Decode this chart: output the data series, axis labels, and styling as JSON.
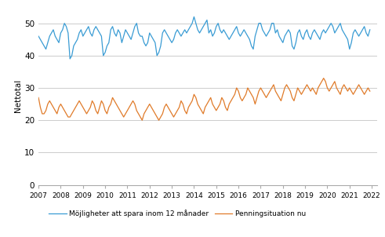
{
  "title": "",
  "ylabel": "Nettotal",
  "xlabel": "",
  "ylim": [
    0,
    55
  ],
  "yticks": [
    0,
    10,
    20,
    30,
    40,
    50
  ],
  "blue_color": "#3a9cd4",
  "orange_color": "#e07b2a",
  "legend_blue": "Möjligheter att spara inom 12 månader",
  "legend_orange": "Penningsituation nu",
  "blue_data": [
    46,
    45,
    44,
    43,
    42,
    44,
    46,
    47,
    48,
    46,
    45,
    44,
    47,
    48,
    50,
    49,
    47,
    39,
    40,
    43,
    44,
    45,
    47,
    48,
    46,
    47,
    48,
    49,
    47,
    46,
    48,
    49,
    48,
    47,
    46,
    40,
    41,
    43,
    44,
    48,
    49,
    47,
    46,
    48,
    47,
    44,
    46,
    48,
    47,
    46,
    45,
    47,
    49,
    50,
    47,
    46,
    46,
    44,
    43,
    44,
    47,
    46,
    45,
    44,
    40,
    41,
    43,
    47,
    48,
    47,
    46,
    45,
    44,
    45,
    47,
    48,
    47,
    46,
    47,
    48,
    47,
    48,
    49,
    50,
    52,
    50,
    48,
    47,
    48,
    49,
    50,
    51,
    47,
    48,
    46,
    47,
    49,
    50,
    48,
    47,
    48,
    47,
    46,
    45,
    46,
    47,
    48,
    49,
    47,
    46,
    47,
    48,
    47,
    46,
    45,
    43,
    42,
    46,
    48,
    50,
    50,
    48,
    47,
    46,
    47,
    48,
    50,
    50,
    47,
    48,
    46,
    45,
    44,
    46,
    47,
    48,
    47,
    43,
    42,
    44,
    47,
    48,
    46,
    45,
    47,
    48,
    46,
    45,
    47,
    48,
    47,
    46,
    45,
    47,
    48,
    47,
    48,
    49,
    50,
    49,
    47,
    48,
    49,
    50,
    48,
    47,
    46,
    45,
    42,
    44,
    47,
    48,
    47,
    46,
    47,
    48,
    49,
    47,
    46,
    48
  ],
  "orange_data": [
    27,
    24,
    22,
    22,
    23,
    25,
    26,
    25,
    24,
    23,
    22,
    24,
    25,
    24,
    23,
    22,
    21,
    21,
    22,
    23,
    24,
    25,
    26,
    25,
    24,
    23,
    22,
    23,
    24,
    26,
    25,
    23,
    22,
    24,
    26,
    25,
    23,
    22,
    24,
    25,
    27,
    26,
    25,
    24,
    23,
    22,
    21,
    22,
    23,
    24,
    25,
    26,
    25,
    23,
    22,
    21,
    20,
    22,
    23,
    24,
    25,
    24,
    23,
    22,
    21,
    20,
    21,
    22,
    24,
    25,
    24,
    23,
    22,
    21,
    22,
    23,
    24,
    26,
    25,
    23,
    22,
    24,
    25,
    26,
    28,
    27,
    25,
    24,
    23,
    22,
    24,
    25,
    26,
    27,
    25,
    24,
    23,
    24,
    25,
    27,
    26,
    24,
    23,
    25,
    26,
    27,
    28,
    30,
    29,
    27,
    26,
    27,
    28,
    30,
    29,
    28,
    27,
    25,
    27,
    29,
    30,
    29,
    28,
    27,
    28,
    29,
    30,
    31,
    29,
    28,
    27,
    26,
    28,
    30,
    31,
    30,
    29,
    27,
    26,
    28,
    30,
    29,
    28,
    29,
    30,
    31,
    30,
    29,
    30,
    29,
    28,
    30,
    31,
    32,
    33,
    32,
    30,
    29,
    30,
    31,
    32,
    30,
    29,
    28,
    30,
    31,
    30,
    29,
    30,
    29,
    28,
    29,
    30,
    31,
    30,
    29,
    28,
    29,
    30,
    29
  ]
}
